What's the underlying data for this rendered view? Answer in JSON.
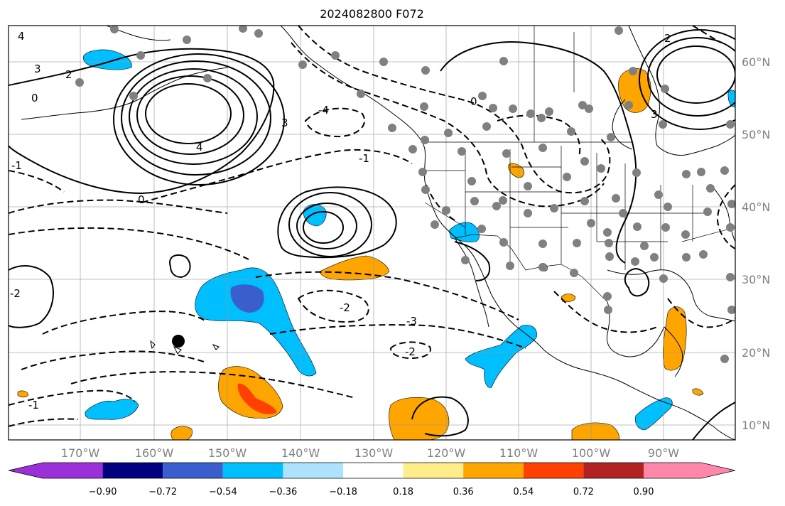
{
  "title": "2024082800 F072",
  "map": {
    "lon_labels": [
      "170°W",
      "160°W",
      "150°W",
      "140°W",
      "130°W",
      "120°W",
      "110°W",
      "100°W",
      "90°W"
    ],
    "lat_labels": [
      "60°N",
      "50°N",
      "40°N",
      "30°N",
      "20°N",
      "10°N"
    ],
    "contour_labels": [
      "4",
      "3",
      "2",
      "0",
      "-1",
      "-2",
      "-3",
      "-4",
      "2",
      "3",
      "0",
      "-1",
      "-2",
      "4",
      "3",
      "0",
      "-1",
      "-2"
    ],
    "colors": {
      "negative_strong": "#3a5fcd",
      "negative": "#00bfff",
      "negative_weak": "#aee3ff",
      "positive_weak": "#ffed8a",
      "positive": "#ffa500",
      "positive_strong": "#ff4000",
      "station_dots": "#808080"
    }
  },
  "colorbar": {
    "tick_labels": [
      "−0.90",
      "−0.72",
      "−0.54",
      "−0.36",
      "−0.18",
      "0.18",
      "0.36",
      "0.54",
      "0.72",
      "0.90"
    ],
    "colors": [
      "#9b30d9",
      "#000080",
      "#3a5fcd",
      "#00bfff",
      "#aee3ff",
      "#ffffff",
      "#ffed8a",
      "#ffa500",
      "#ff4000",
      "#b22222",
      "#ff88aa"
    ]
  }
}
